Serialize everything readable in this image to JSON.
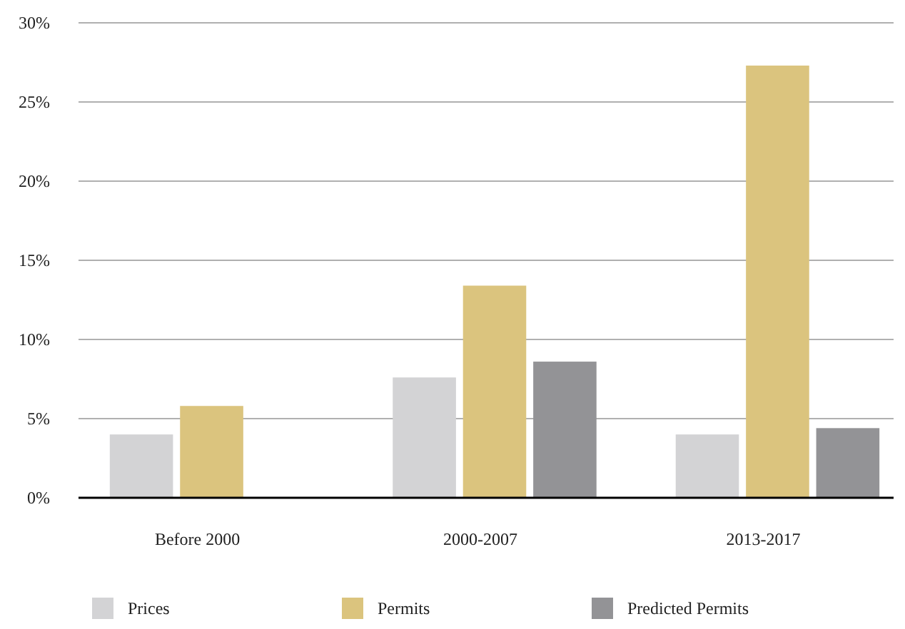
{
  "chart_data": {
    "type": "bar",
    "categories": [
      "Before 2000",
      "2000-2007",
      "2013-2017"
    ],
    "series": [
      {
        "name": "Prices",
        "color": "#d3d3d5",
        "values": [
          4.0,
          7.6,
          4.0
        ]
      },
      {
        "name": "Permits",
        "color": "#dbc47e",
        "values": [
          5.8,
          13.4,
          27.3
        ]
      },
      {
        "name": "Predicted Permits",
        "color": "#939396",
        "values": [
          null,
          8.6,
          4.4
        ]
      }
    ],
    "ylim": [
      0,
      30
    ],
    "yticks": [
      {
        "value": 0,
        "label": "0%"
      },
      {
        "value": 5,
        "label": "5%"
      },
      {
        "value": 10,
        "label": "10%"
      },
      {
        "value": 15,
        "label": "15%"
      },
      {
        "value": 20,
        "label": "20%"
      },
      {
        "value": 25,
        "label": "25%"
      },
      {
        "value": 30,
        "label": "30%"
      }
    ],
    "grid": "y",
    "legend": "bottom"
  }
}
